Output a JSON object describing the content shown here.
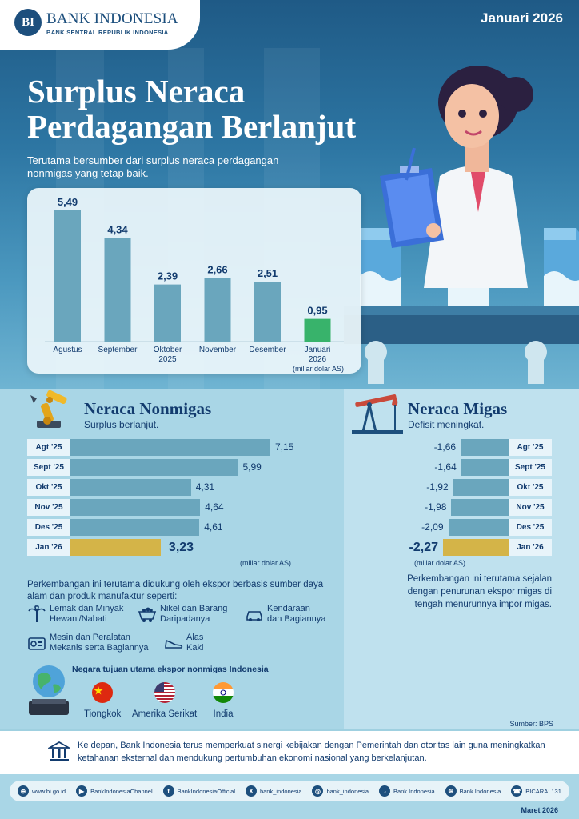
{
  "header": {
    "logo_mark": "BI",
    "logo_title": "BANK INDONESIA",
    "logo_subtitle": "BANK SENTRAL REPUBLIK INDONESIA",
    "period": "Januari 2026"
  },
  "hero": {
    "title_line1": "Surplus Neraca",
    "title_line2": "Perdagangan Berlanjut",
    "subtitle": "Terutama bersumber dari surplus neraca perdagangan nonmigas yang tetap baik."
  },
  "chart_data": [
    {
      "type": "bar",
      "categories": [
        "Agustus",
        "September",
        "Oktober 2025",
        "November",
        "Desember",
        "Januari 2026"
      ],
      "category_lines": [
        [
          "Agustus"
        ],
        [
          "September"
        ],
        [
          "Oktober",
          "2025"
        ],
        [
          "November"
        ],
        [
          "Desember"
        ],
        [
          "Januari",
          "2026"
        ]
      ],
      "values": [
        5.49,
        4.34,
        2.39,
        2.66,
        2.51,
        0.95
      ],
      "value_labels": [
        "5,49",
        "4,34",
        "2,39",
        "2,66",
        "2,51",
        "0,95"
      ],
      "unit": "(miliar dolar AS)",
      "highlight_index": 5,
      "colors": {
        "bar": "#6aa6bd",
        "highlight": "#38b36b"
      }
    },
    {
      "type": "bar",
      "orientation": "horizontal",
      "title": "Neraca Nonmigas",
      "subtitle": "Surplus berlanjut.",
      "categories": [
        "Agt '25",
        "Sept '25",
        "Okt '25",
        "Nov '25",
        "Des '25",
        "Jan '26"
      ],
      "values": [
        7.15,
        5.99,
        4.31,
        4.64,
        4.61,
        3.23
      ],
      "value_labels": [
        "7,15",
        "5,99",
        "4,31",
        "4,64",
        "4,61",
        "3,23"
      ],
      "unit": "(miliar dolar AS)",
      "highlight_index": 5
    },
    {
      "type": "bar",
      "orientation": "horizontal",
      "title": "Neraca Migas",
      "subtitle": "Defisit meningkat.",
      "categories": [
        "Agt '25",
        "Sept '25",
        "Okt '25",
        "Nov '25",
        "Des '25",
        "Jan '26"
      ],
      "values": [
        -1.66,
        -1.64,
        -1.92,
        -1.98,
        -2.09,
        -2.27
      ],
      "value_labels": [
        "-1,66",
        "-1,64",
        "-1,92",
        "-1,98",
        "-2,09",
        "-2,27"
      ],
      "unit": "(miliar dolar AS)",
      "highlight_index": 5
    }
  ],
  "nonmigas": {
    "description": "Perkembangan ini terutama didukung oleh ekspor berbasis sumber daya alam dan produk manufaktur seperti:",
    "products": [
      {
        "line1": "Lemak dan Minyak",
        "line2": "Hewani/Nabati",
        "icon": "palm-tree-icon"
      },
      {
        "line1": "Nikel dan Barang",
        "line2": "Daripadanya",
        "icon": "mining-cart-icon"
      },
      {
        "line1": "Kendaraan",
        "line2": "dan Bagiannya",
        "icon": "car-icon"
      },
      {
        "line1": "Mesin dan Peralatan",
        "line2": "Mekanis serta Bagiannya",
        "icon": "machine-icon"
      },
      {
        "line1": "Alas",
        "line2": "Kaki",
        "icon": "shoe-icon"
      }
    ],
    "destinations_title": "Negara tujuan utama ekspor nonmigas Indonesia",
    "destinations": [
      "Tiongkok",
      "Amerika Serikat",
      "India"
    ]
  },
  "migas": {
    "description": "Perkembangan ini terutama sejalan dengan penurunan ekspor migas di tengah menurunnya impor migas."
  },
  "source": "Sumber: BPS",
  "outlook": "Ke depan, Bank Indonesia terus memperkuat sinergi kebijakan dengan Pemerintah dan otoritas lain guna meningkatkan ketahanan eksternal dan mendukung pertumbuhan ekonomi nasional yang berkelanjutan.",
  "footer": {
    "social": [
      {
        "icon": "globe-icon",
        "glyph": "⊕",
        "label": "www.bi.go.id"
      },
      {
        "icon": "youtube-icon",
        "glyph": "▶",
        "label": "BankIndonesiaChannel"
      },
      {
        "icon": "facebook-icon",
        "glyph": "f",
        "label": "BankIndonesiaOfficial"
      },
      {
        "icon": "x-icon",
        "glyph": "X",
        "label": "bank_indonesia"
      },
      {
        "icon": "instagram-icon",
        "glyph": "◎",
        "label": "bank_indonesia"
      },
      {
        "icon": "tiktok-icon",
        "glyph": "♪",
        "label": "Bank Indonesia"
      },
      {
        "icon": "spotify-icon",
        "glyph": "≋",
        "label": "Bank Indonesia"
      },
      {
        "icon": "bicara-icon",
        "glyph": "☎",
        "label": "BICARA: 131"
      }
    ],
    "release_date": "Maret 2026"
  }
}
